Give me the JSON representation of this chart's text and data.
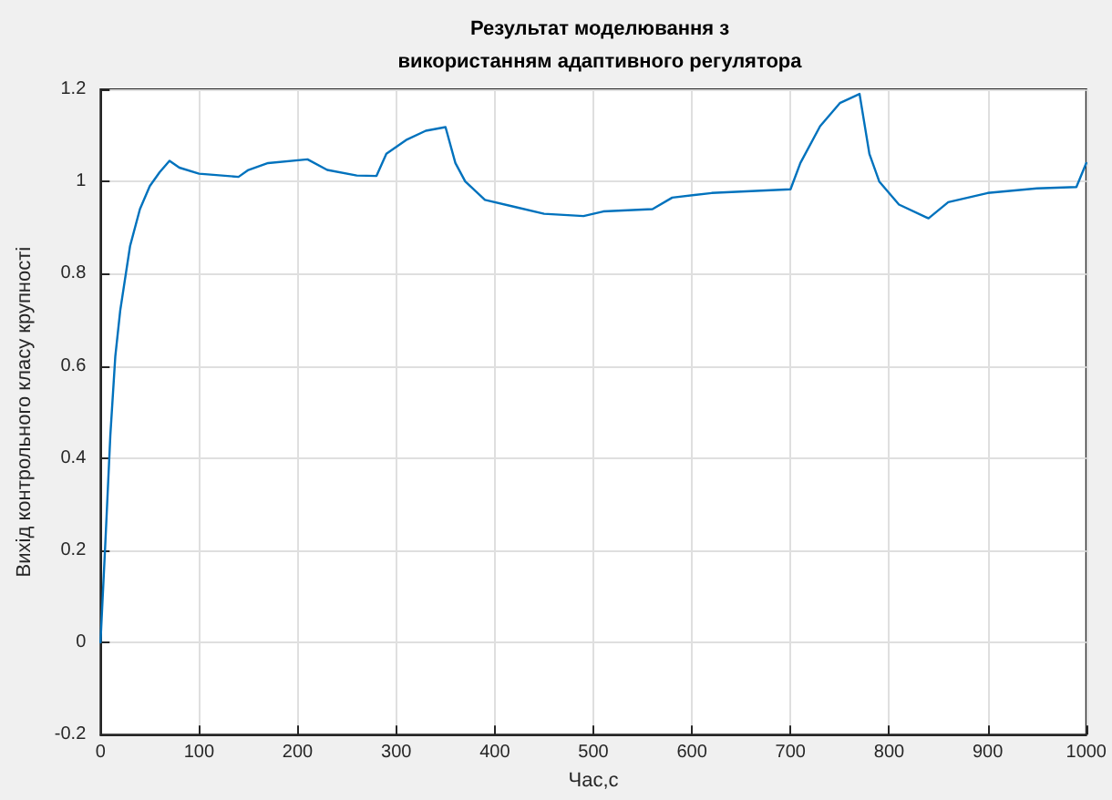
{
  "chart_data": {
    "type": "line",
    "title": "Результат моделювання з\nвикористанням адаптивного регулятора",
    "xlabel": "Час,с",
    "ylabel": "Вихід контрольного класу крупності",
    "x": [
      0,
      5,
      10,
      15,
      20,
      30,
      40,
      50,
      60,
      70,
      80,
      100,
      140,
      150,
      170,
      210,
      230,
      260,
      280,
      290,
      310,
      330,
      350,
      360,
      370,
      390,
      420,
      450,
      490,
      510,
      560,
      580,
      620,
      700,
      710,
      730,
      750,
      770,
      780,
      790,
      810,
      840,
      860,
      900,
      950,
      990,
      1000
    ],
    "series": [
      {
        "color": "#0072bd",
        "values": [
          0,
          0.22,
          0.45,
          0.62,
          0.72,
          0.86,
          0.94,
          0.99,
          1.02,
          1.045,
          1.03,
          1.017,
          1.01,
          1.025,
          1.04,
          1.048,
          1.025,
          1.013,
          1.012,
          1.06,
          1.09,
          1.11,
          1.118,
          1.04,
          1.0,
          0.96,
          0.945,
          0.93,
          0.925,
          0.935,
          0.94,
          0.965,
          0.975,
          0.983,
          1.04,
          1.12,
          1.17,
          1.19,
          1.06,
          1.0,
          0.95,
          0.92,
          0.955,
          0.975,
          0.985,
          0.988,
          1.04
        ]
      }
    ],
    "xlim": [
      0,
      1000
    ],
    "xticks": [
      0,
      100,
      200,
      300,
      400,
      500,
      600,
      700,
      800,
      900,
      1000
    ],
    "ylim": [
      -0.2,
      1.2
    ],
    "yticks": [
      -0.2,
      0,
      0.2,
      0.4,
      0.6,
      0.8,
      1,
      1.2
    ],
    "grid": true,
    "marker": "none",
    "line_style": "solid"
  }
}
